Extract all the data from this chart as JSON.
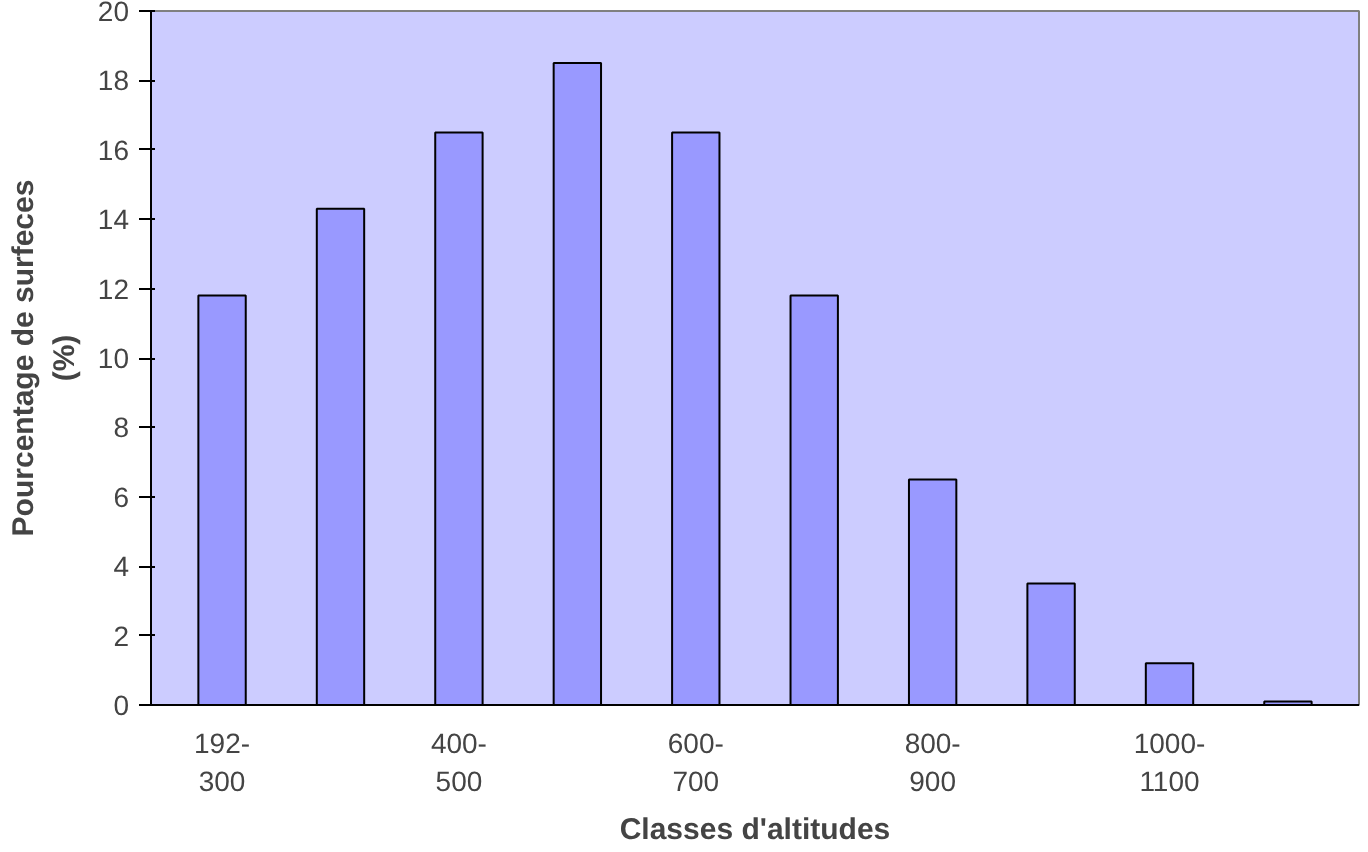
{
  "chart_data": {
    "type": "bar",
    "xlabel": "Classes d'altitudes",
    "ylabel": "Pourcentage de surfeces\n(%)",
    "categories": [
      "192-\n300",
      null,
      "400-\n500",
      null,
      "600-\n700",
      null,
      "800-\n900",
      null,
      "1000-\n1100",
      null
    ],
    "values": [
      11.8,
      14.3,
      16.5,
      18.5,
      16.5,
      11.8,
      6.5,
      3.5,
      1.2,
      0.1
    ],
    "color": "#9999ff",
    "ylim": [
      0,
      20
    ],
    "yticks": [
      0,
      2,
      4,
      6,
      8,
      10,
      12,
      14,
      16,
      18,
      20
    ],
    "grid": false
  }
}
